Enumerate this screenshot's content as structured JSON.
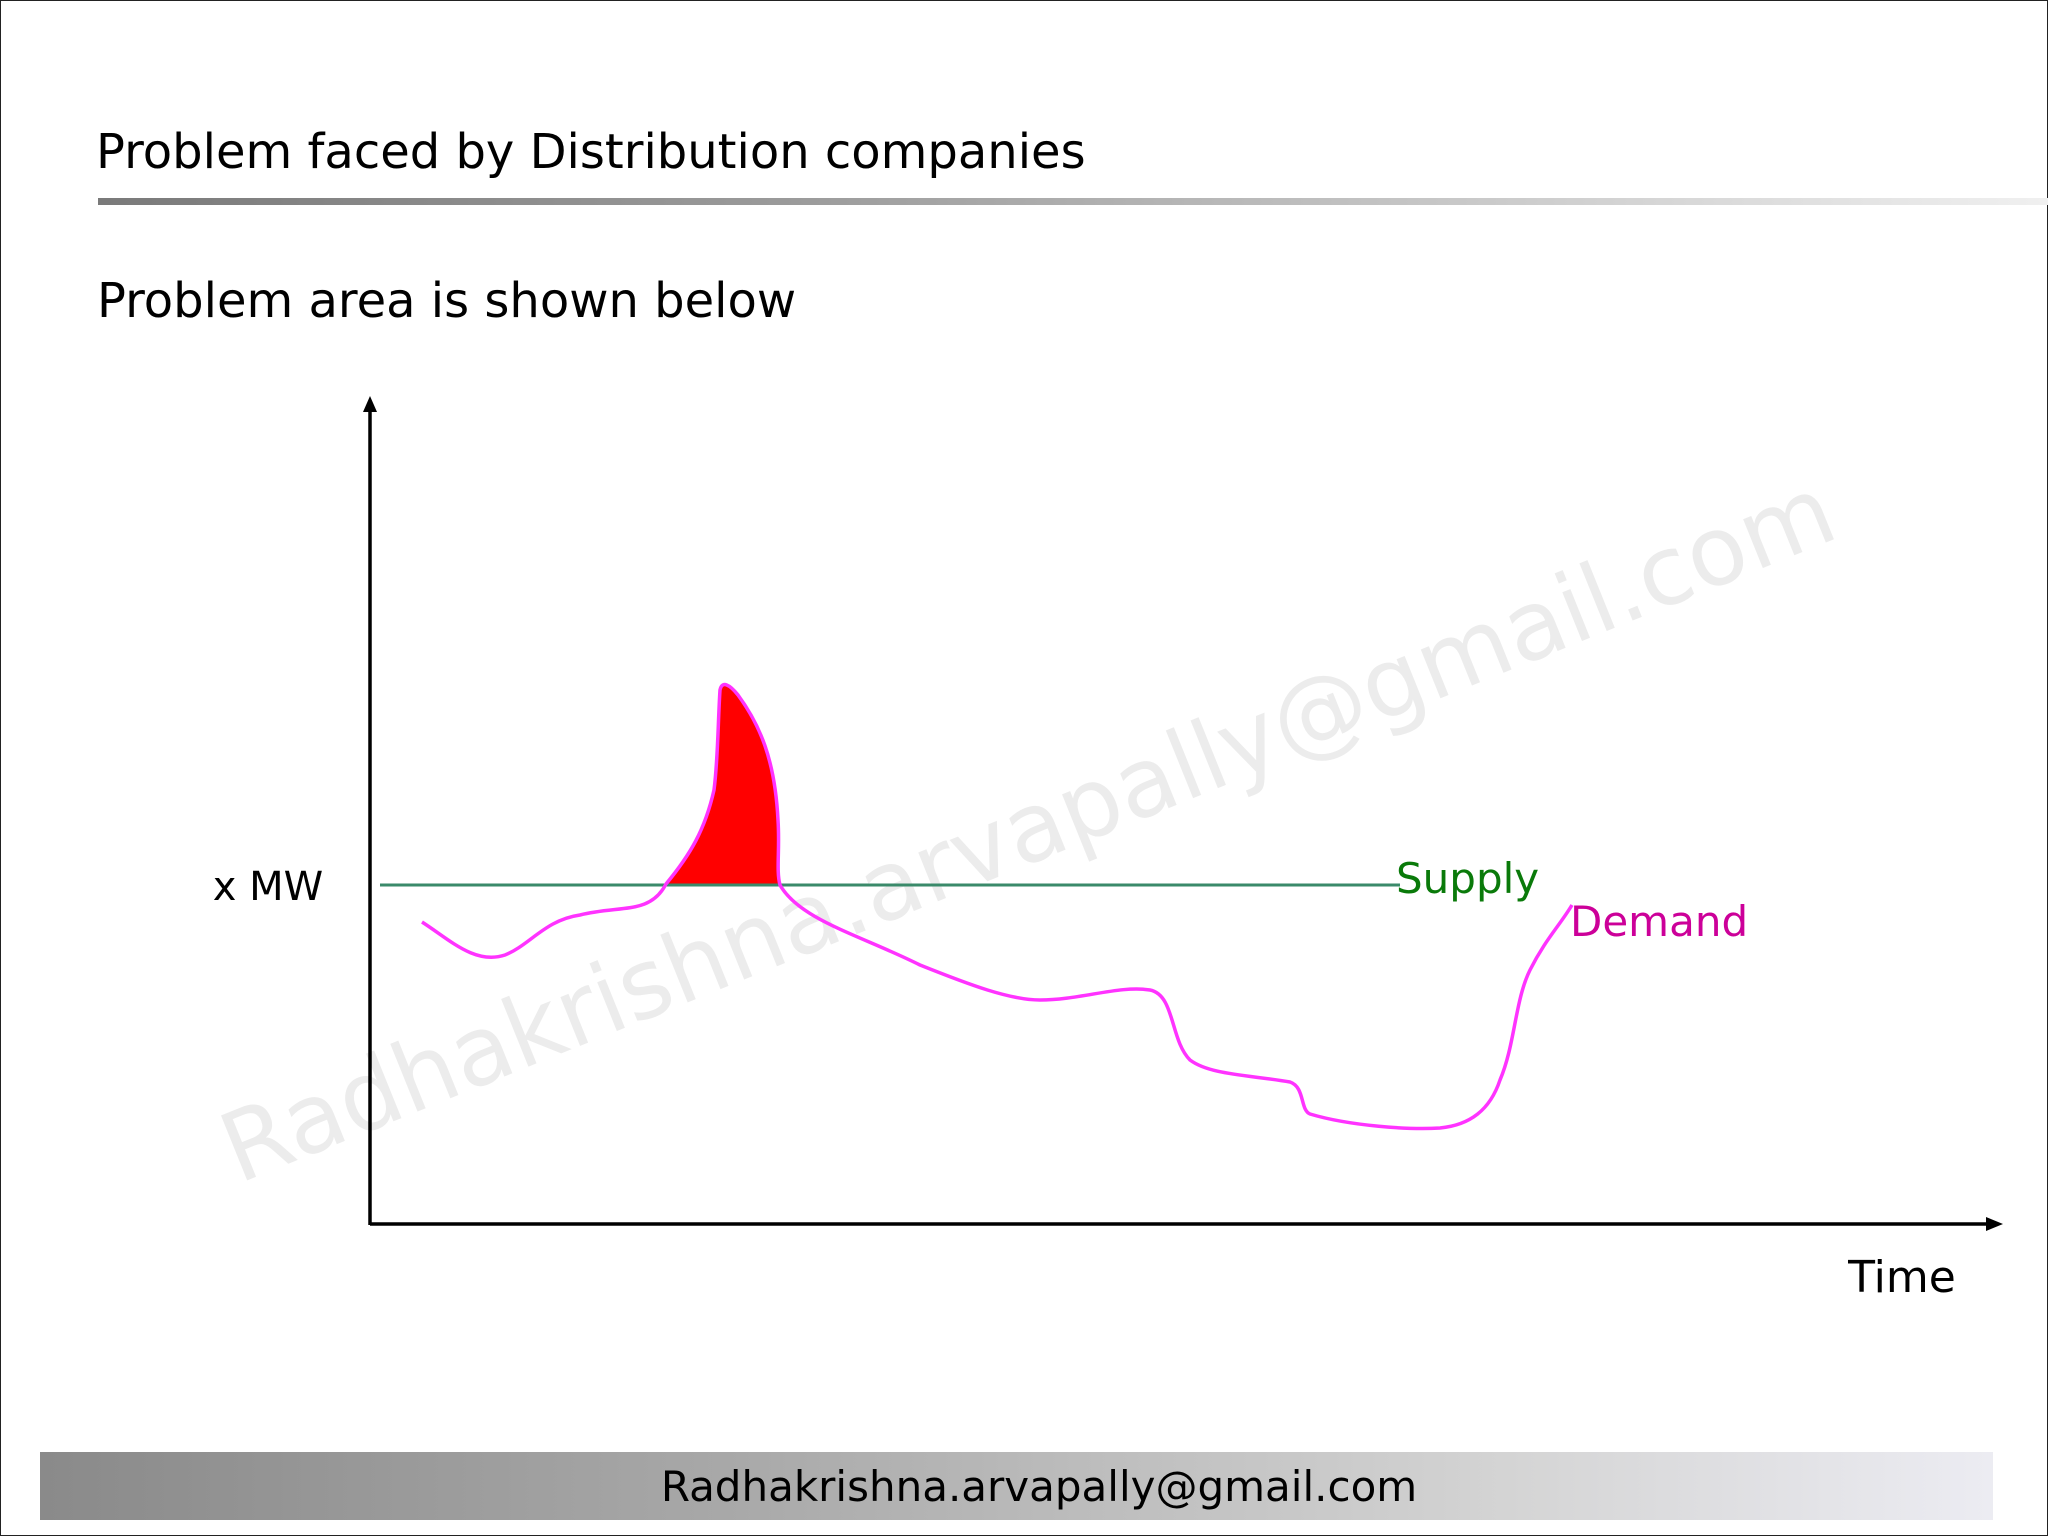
{
  "slide": {
    "title": "Problem faced by Distribution companies",
    "subtitle": "Problem area is shown below",
    "footer": "Radhakrishna.arvapally@gmail.com",
    "watermark": "Radhakrishna.arvapally@gmail.com"
  },
  "diagram": {
    "y_axis_label": "x MW",
    "x_axis_label": "Time",
    "supply_label": "Supply",
    "demand_label": "Demand",
    "colors": {
      "axis": "#000000",
      "supply": "#2e8b57",
      "supply_label": "#0a7a0a",
      "demand": "#ff33ff",
      "demand_label": "#cc0099",
      "problem_area": "#ff0000",
      "watermark": "#e8e8e8"
    }
  }
}
